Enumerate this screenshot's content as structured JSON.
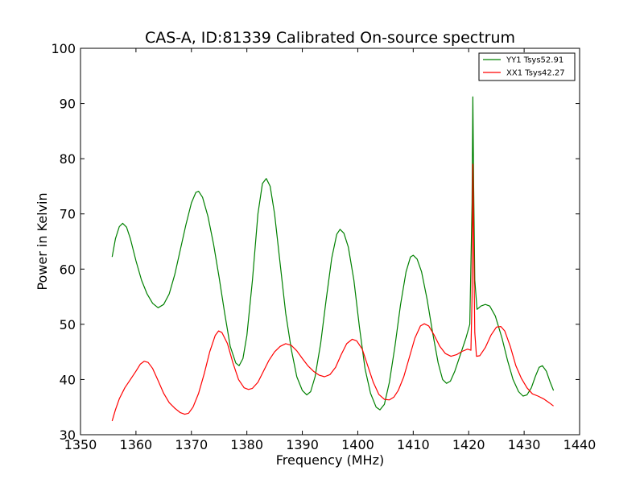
{
  "chart_data": {
    "type": "line",
    "title": "CAS-A, ID:81339 Calibrated On-source spectrum",
    "xlabel": "Frequency (MHz)",
    "ylabel": "Power in Kelvin",
    "xlim": [
      1350,
      1440
    ],
    "ylim": [
      30,
      100
    ],
    "xticks": [
      1350,
      1360,
      1370,
      1380,
      1390,
      1400,
      1410,
      1420,
      1430,
      1440
    ],
    "yticks": [
      30,
      40,
      50,
      60,
      70,
      80,
      90,
      100
    ],
    "grid": false,
    "legend_position": "top-right",
    "series": [
      {
        "name": "YY1 Tsys52.91",
        "color": "#008000",
        "points": [
          [
            1355.7,
            62.2
          ],
          [
            1356.3,
            65.5
          ],
          [
            1357.0,
            67.7
          ],
          [
            1357.6,
            68.3
          ],
          [
            1358.3,
            67.6
          ],
          [
            1359.0,
            65.5
          ],
          [
            1360.0,
            61.5
          ],
          [
            1361.0,
            58.0
          ],
          [
            1362.0,
            55.5
          ],
          [
            1363.0,
            53.8
          ],
          [
            1364.0,
            53.0
          ],
          [
            1365.0,
            53.6
          ],
          [
            1366.0,
            55.5
          ],
          [
            1367.0,
            59.0
          ],
          [
            1368.0,
            63.5
          ],
          [
            1369.0,
            68.0
          ],
          [
            1370.0,
            72.0
          ],
          [
            1370.8,
            73.9
          ],
          [
            1371.3,
            74.1
          ],
          [
            1372.0,
            73.0
          ],
          [
            1373.0,
            69.5
          ],
          [
            1374.0,
            64.5
          ],
          [
            1375.0,
            58.5
          ],
          [
            1376.0,
            52.0
          ],
          [
            1377.0,
            46.0
          ],
          [
            1378.0,
            43.0
          ],
          [
            1378.6,
            42.5
          ],
          [
            1379.3,
            43.8
          ],
          [
            1380.0,
            48.0
          ],
          [
            1381.0,
            58.0
          ],
          [
            1382.0,
            70.0
          ],
          [
            1382.8,
            75.5
          ],
          [
            1383.5,
            76.4
          ],
          [
            1384.2,
            75.0
          ],
          [
            1385.0,
            70.0
          ],
          [
            1386.0,
            61.0
          ],
          [
            1387.0,
            52.0
          ],
          [
            1388.0,
            45.5
          ],
          [
            1389.0,
            40.5
          ],
          [
            1390.0,
            38.0
          ],
          [
            1390.8,
            37.2
          ],
          [
            1391.5,
            37.8
          ],
          [
            1392.3,
            40.5
          ],
          [
            1393.3,
            46.5
          ],
          [
            1394.3,
            54.5
          ],
          [
            1395.3,
            62.0
          ],
          [
            1396.2,
            66.3
          ],
          [
            1396.8,
            67.2
          ],
          [
            1397.5,
            66.5
          ],
          [
            1398.3,
            64.0
          ],
          [
            1399.3,
            58.0
          ],
          [
            1400.3,
            49.5
          ],
          [
            1401.3,
            42.0
          ],
          [
            1402.3,
            37.5
          ],
          [
            1403.3,
            35.0
          ],
          [
            1404.0,
            34.5
          ],
          [
            1404.8,
            35.5
          ],
          [
            1405.7,
            39.5
          ],
          [
            1406.7,
            46.0
          ],
          [
            1407.7,
            53.5
          ],
          [
            1408.7,
            59.5
          ],
          [
            1409.5,
            62.2
          ],
          [
            1410.0,
            62.5
          ],
          [
            1410.7,
            61.8
          ],
          [
            1411.5,
            59.5
          ],
          [
            1412.5,
            54.5
          ],
          [
            1413.5,
            48.5
          ],
          [
            1414.5,
            43.0
          ],
          [
            1415.3,
            40.0
          ],
          [
            1416.0,
            39.3
          ],
          [
            1416.7,
            39.7
          ],
          [
            1417.5,
            41.5
          ],
          [
            1418.5,
            44.5
          ],
          [
            1419.5,
            47.5
          ],
          [
            1420.2,
            50.0
          ],
          [
            1420.6,
            72.0
          ],
          [
            1420.75,
            91.2
          ],
          [
            1420.9,
            75.0
          ],
          [
            1421.1,
            58.0
          ],
          [
            1421.5,
            52.7
          ],
          [
            1422.2,
            53.3
          ],
          [
            1423.0,
            53.6
          ],
          [
            1423.8,
            53.3
          ],
          [
            1424.8,
            51.5
          ],
          [
            1426.0,
            47.5
          ],
          [
            1427.0,
            43.5
          ],
          [
            1428.0,
            40.0
          ],
          [
            1429.0,
            37.8
          ],
          [
            1429.8,
            37.0
          ],
          [
            1430.5,
            37.2
          ],
          [
            1431.3,
            38.5
          ],
          [
            1432.0,
            40.5
          ],
          [
            1432.7,
            42.2
          ],
          [
            1433.3,
            42.5
          ],
          [
            1434.0,
            41.5
          ],
          [
            1434.7,
            39.5
          ],
          [
            1435.3,
            38.0
          ]
        ]
      },
      {
        "name": "XX1 Tsys42.27",
        "color": "#ff0000",
        "points": [
          [
            1355.7,
            32.5
          ],
          [
            1356.3,
            34.5
          ],
          [
            1357.0,
            36.5
          ],
          [
            1358.0,
            38.5
          ],
          [
            1359.0,
            40.0
          ],
          [
            1360.0,
            41.5
          ],
          [
            1360.8,
            42.8
          ],
          [
            1361.5,
            43.3
          ],
          [
            1362.2,
            43.1
          ],
          [
            1363.0,
            42.0
          ],
          [
            1364.0,
            39.8
          ],
          [
            1365.0,
            37.5
          ],
          [
            1366.0,
            35.8
          ],
          [
            1367.0,
            34.8
          ],
          [
            1368.0,
            34.0
          ],
          [
            1368.8,
            33.7
          ],
          [
            1369.5,
            33.9
          ],
          [
            1370.3,
            35.0
          ],
          [
            1371.3,
            37.5
          ],
          [
            1372.3,
            41.0
          ],
          [
            1373.3,
            45.0
          ],
          [
            1374.3,
            48.0
          ],
          [
            1374.9,
            48.8
          ],
          [
            1375.5,
            48.5
          ],
          [
            1376.5,
            46.5
          ],
          [
            1377.5,
            43.0
          ],
          [
            1378.5,
            40.0
          ],
          [
            1379.5,
            38.5
          ],
          [
            1380.3,
            38.2
          ],
          [
            1381.0,
            38.4
          ],
          [
            1382.0,
            39.5
          ],
          [
            1383.0,
            41.5
          ],
          [
            1384.0,
            43.5
          ],
          [
            1385.0,
            45.0
          ],
          [
            1386.0,
            46.0
          ],
          [
            1387.0,
            46.5
          ],
          [
            1388.0,
            46.2
          ],
          [
            1389.0,
            45.2
          ],
          [
            1390.0,
            43.8
          ],
          [
            1391.0,
            42.5
          ],
          [
            1392.0,
            41.5
          ],
          [
            1393.0,
            40.8
          ],
          [
            1394.0,
            40.5
          ],
          [
            1395.0,
            40.9
          ],
          [
            1396.0,
            42.2
          ],
          [
            1397.0,
            44.5
          ],
          [
            1398.0,
            46.5
          ],
          [
            1399.0,
            47.3
          ],
          [
            1399.8,
            47.0
          ],
          [
            1400.8,
            45.5
          ],
          [
            1401.8,
            42.5
          ],
          [
            1402.8,
            39.5
          ],
          [
            1403.8,
            37.3
          ],
          [
            1404.8,
            36.4
          ],
          [
            1405.7,
            36.3
          ],
          [
            1406.5,
            36.8
          ],
          [
            1407.3,
            38.0
          ],
          [
            1408.3,
            40.5
          ],
          [
            1409.3,
            44.0
          ],
          [
            1410.3,
            47.5
          ],
          [
            1411.3,
            49.7
          ],
          [
            1412.0,
            50.1
          ],
          [
            1412.8,
            49.7
          ],
          [
            1413.8,
            48.0
          ],
          [
            1414.8,
            46.0
          ],
          [
            1415.8,
            44.7
          ],
          [
            1416.8,
            44.2
          ],
          [
            1417.8,
            44.5
          ],
          [
            1418.8,
            45.1
          ],
          [
            1419.8,
            45.5
          ],
          [
            1420.4,
            45.3
          ],
          [
            1420.6,
            55.0
          ],
          [
            1420.75,
            79.0
          ],
          [
            1420.9,
            65.0
          ],
          [
            1421.1,
            48.5
          ],
          [
            1421.4,
            44.2
          ],
          [
            1422.0,
            44.3
          ],
          [
            1423.0,
            45.8
          ],
          [
            1424.0,
            48.0
          ],
          [
            1425.0,
            49.5
          ],
          [
            1425.8,
            49.6
          ],
          [
            1426.5,
            48.8
          ],
          [
            1427.5,
            46.0
          ],
          [
            1428.5,
            42.5
          ],
          [
            1429.5,
            40.2
          ],
          [
            1430.5,
            38.5
          ],
          [
            1431.5,
            37.4
          ],
          [
            1432.5,
            37.0
          ],
          [
            1433.5,
            36.5
          ],
          [
            1434.5,
            35.8
          ],
          [
            1435.3,
            35.2
          ]
        ]
      }
    ]
  }
}
